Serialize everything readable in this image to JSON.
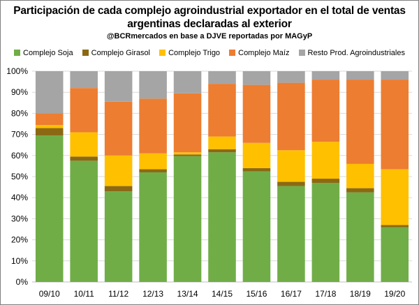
{
  "chart_data": {
    "type": "bar",
    "stacked": true,
    "title": "Participación de cada complejo agroindustrial exportador en el total de ventas argentinas declaradas al exterior",
    "subtitle": "@BCRmercados en base a DJVE reportadas por MAGyP",
    "legend_position": "top",
    "grid": true,
    "ylim": [
      0,
      100
    ],
    "y_ticks": [
      "0%",
      "10%",
      "20%",
      "30%",
      "40%",
      "50%",
      "60%",
      "70%",
      "80%",
      "90%",
      "100%"
    ],
    "categories": [
      "09/10",
      "10/11",
      "11/12",
      "12/13",
      "13/14",
      "14/15",
      "15/16",
      "16/17",
      "17/18",
      "18/19",
      "19/20"
    ],
    "series": [
      {
        "name": "Complejo Soja",
        "color": "#70ad47",
        "values": [
          69.5,
          57.5,
          43.0,
          52.0,
          59.7,
          61.5,
          52.5,
          45.5,
          47.0,
          42.5,
          26.0
        ]
      },
      {
        "name": "Complejo Girasol",
        "color": "#8b6914",
        "values": [
          3.5,
          2.0,
          2.5,
          1.5,
          0.8,
          1.5,
          1.5,
          2.0,
          2.0,
          2.0,
          1.0
        ]
      },
      {
        "name": "Complejo Trigo",
        "color": "#ffc000",
        "values": [
          1.5,
          11.5,
          14.5,
          7.5,
          1.0,
          6.0,
          12.0,
          15.0,
          17.5,
          11.5,
          26.5
        ]
      },
      {
        "name": "Complejo Maíz",
        "color": "#ed7d31",
        "values": [
          5.5,
          21.0,
          25.5,
          26.0,
          28.0,
          25.0,
          27.5,
          32.0,
          29.5,
          40.0,
          42.5
        ]
      },
      {
        "name": "Resto Prod. Agroindustriales",
        "color": "#a5a5a5",
        "values": [
          20.0,
          8.0,
          14.5,
          13.0,
          10.5,
          6.0,
          6.5,
          5.5,
          4.0,
          4.0,
          4.0
        ]
      }
    ]
  }
}
